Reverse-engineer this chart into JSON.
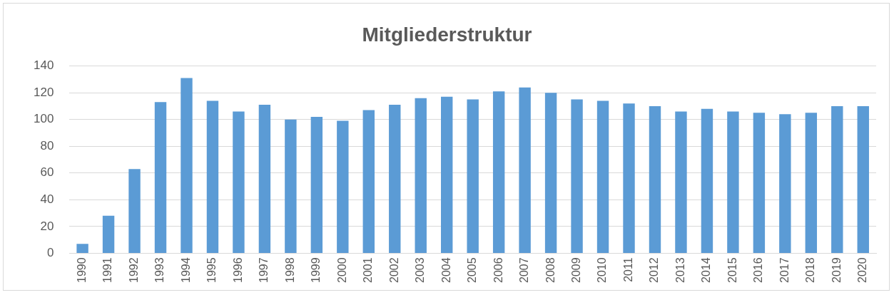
{
  "chart_data": {
    "type": "bar",
    "title": "Mitgliederstruktur",
    "categories": [
      "1990",
      "1991",
      "1992",
      "1993",
      "1994",
      "1995",
      "1996",
      "1997",
      "1998",
      "1999",
      "2000",
      "2001",
      "2002",
      "2003",
      "2004",
      "2005",
      "2006",
      "2007",
      "2008",
      "2009",
      "2010",
      "2011",
      "2012",
      "2013",
      "2014",
      "2015",
      "2016",
      "2017",
      "2018",
      "2019",
      "2020"
    ],
    "values": [
      7,
      28,
      63,
      113,
      131,
      114,
      106,
      111,
      100,
      102,
      99,
      107,
      111,
      116,
      117,
      115,
      121,
      124,
      120,
      115,
      114,
      112,
      110,
      106,
      108,
      106,
      105,
      104,
      105,
      110,
      110
    ],
    "color": "#5b9bd5",
    "ylim": [
      0,
      140
    ],
    "yticks": [
      0,
      20,
      40,
      60,
      80,
      100,
      120,
      140
    ],
    "grid": "y",
    "legend": false
  }
}
